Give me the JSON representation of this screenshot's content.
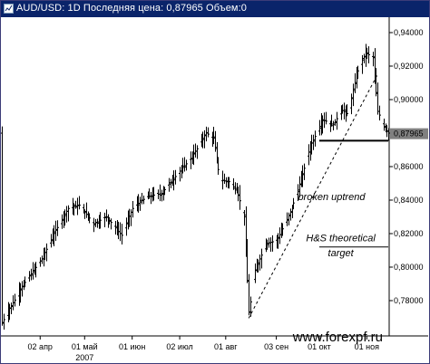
{
  "window": {
    "title": "AUD/USD: 1D Последняя цена: 0,87965 Объем:0"
  },
  "chart_data": {
    "type": "ohlc",
    "symbol": "AUD/USD",
    "timeframe": "1D",
    "last_price": 0.87965,
    "last_price_label": "0,87965",
    "volume": 0,
    "y_axis": {
      "ylim": [
        0.76,
        0.9435
      ],
      "ticks": [
        {
          "label": "0,94000",
          "value": 0.94
        },
        {
          "label": "0,92000",
          "value": 0.92
        },
        {
          "label": "0,90000",
          "value": 0.9
        },
        {
          "label": "0,88000",
          "value": 0.88
        },
        {
          "label": "0,86000",
          "value": 0.86
        },
        {
          "label": "0,84000",
          "value": 0.84
        },
        {
          "label": "0,82000",
          "value": 0.82
        },
        {
          "label": "0,80000",
          "value": 0.8
        },
        {
          "label": "0,78000",
          "value": 0.78
        }
      ]
    },
    "x_axis": {
      "start": "2007-03-08",
      "end": "2007-11-15",
      "ticks": [
        {
          "label": "02 апр",
          "date": "2007-04-02"
        },
        {
          "label": "01 май",
          "date": "2007-05-01"
        },
        {
          "label": "01 июн",
          "date": "2007-06-01"
        },
        {
          "label": "02 июл",
          "date": "2007-07-02"
        },
        {
          "label": "01 авг",
          "date": "2007-08-01"
        },
        {
          "label": "03 сен",
          "date": "2007-09-03"
        },
        {
          "label": "01 окт",
          "date": "2007-10-01"
        },
        {
          "label": "01 ноя",
          "date": "2007-11-01"
        }
      ],
      "year_label": {
        "label": "2007",
        "date": "2007-05-01"
      }
    },
    "series": [
      {
        "style": "ohlc-bars",
        "color": "#000000",
        "anchors": [
          {
            "date": "2007-03-08",
            "value": 0.767
          },
          {
            "date": "2007-03-20",
            "value": 0.787
          },
          {
            "date": "2007-04-03",
            "value": 0.805
          },
          {
            "date": "2007-04-12",
            "value": 0.822
          },
          {
            "date": "2007-04-20",
            "value": 0.835
          },
          {
            "date": "2007-04-27",
            "value": 0.837
          },
          {
            "date": "2007-05-07",
            "value": 0.826
          },
          {
            "date": "2007-05-15",
            "value": 0.83
          },
          {
            "date": "2007-05-25",
            "value": 0.819
          },
          {
            "date": "2007-06-01",
            "value": 0.835
          },
          {
            "date": "2007-06-10",
            "value": 0.842
          },
          {
            "date": "2007-06-20",
            "value": 0.844
          },
          {
            "date": "2007-06-28",
            "value": 0.853
          },
          {
            "date": "2007-07-10",
            "value": 0.866
          },
          {
            "date": "2007-07-19",
            "value": 0.88
          },
          {
            "date": "2007-07-24",
            "value": 0.877
          },
          {
            "date": "2007-07-28",
            "value": 0.852
          },
          {
            "date": "2007-08-03",
            "value": 0.851
          },
          {
            "date": "2007-08-08",
            "value": 0.846
          },
          {
            "date": "2007-08-13",
            "value": 0.83
          },
          {
            "date": "2007-08-16",
            "value": 0.773
          },
          {
            "date": "2007-08-20",
            "value": 0.798
          },
          {
            "date": "2007-08-27",
            "value": 0.814
          },
          {
            "date": "2007-09-03",
            "value": 0.816
          },
          {
            "date": "2007-09-10",
            "value": 0.828
          },
          {
            "date": "2007-09-17",
            "value": 0.846
          },
          {
            "date": "2007-09-25",
            "value": 0.872
          },
          {
            "date": "2007-10-03",
            "value": 0.888
          },
          {
            "date": "2007-10-10",
            "value": 0.885
          },
          {
            "date": "2007-10-15",
            "value": 0.894
          },
          {
            "date": "2007-10-20",
            "value": 0.891
          },
          {
            "date": "2007-10-25",
            "value": 0.915
          },
          {
            "date": "2007-10-31",
            "value": 0.928
          },
          {
            "date": "2007-11-05",
            "value": 0.925
          },
          {
            "date": "2007-11-08",
            "value": 0.893
          },
          {
            "date": "2007-11-12",
            "value": 0.884
          },
          {
            "date": "2007-11-15",
            "value": 0.88
          }
        ]
      }
    ],
    "annotations": {
      "neckline": {
        "from": {
          "date": "2007-10-01",
          "value": 0.8755
        },
        "to": {
          "date": "2007-11-15",
          "value": 0.8755
        },
        "style": "solid-thick"
      },
      "uptrend": {
        "from": {
          "date": "2007-08-16",
          "value": 0.7695
        },
        "to": {
          "date": "2007-11-08",
          "value": 0.915
        },
        "style": "dashed"
      },
      "target_line": {
        "from": {
          "date": "2007-10-01",
          "value": 0.812
        },
        "to": {
          "date": "2007-11-15",
          "value": 0.812
        },
        "style": "solid-thin"
      },
      "labels": [
        {
          "text": "broken uptrend",
          "date": "2007-10-09",
          "value": 0.84
        },
        {
          "text": "H&S theoretical",
          "date": "2007-10-15",
          "value": 0.8155
        },
        {
          "text": "target",
          "date": "2007-10-15",
          "value": 0.8065
        }
      ]
    },
    "watermark": "www.forexpf.ru",
    "grid": false,
    "background": "#ffffff"
  }
}
